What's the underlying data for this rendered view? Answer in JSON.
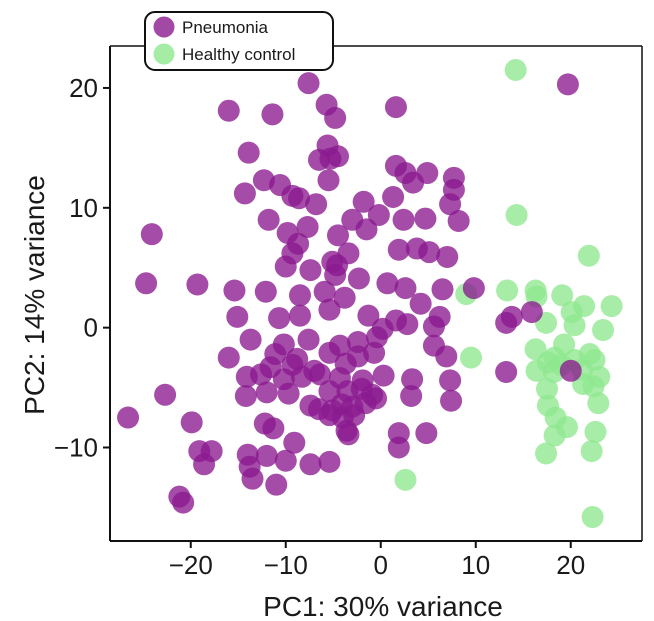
{
  "chart_data": {
    "type": "scatter",
    "title": "",
    "xlabel": "PC1: 30% variance",
    "ylabel": "PC2: 14% variance",
    "xlim": [
      -28.5,
      27.5
    ],
    "ylim": [
      -17.8,
      23.5
    ],
    "xticks": [
      -20,
      -10,
      0,
      10,
      20
    ],
    "yticks": [
      -10,
      0,
      10,
      20
    ],
    "xtick_labels": [
      "−20",
      "−10",
      "0",
      "10",
      "20"
    ],
    "ytick_labels": [
      "−10",
      "0",
      "10",
      "20"
    ],
    "grid": false,
    "legend_position": "top-left",
    "series": [
      {
        "name": "Pneumonia",
        "color": "#8b1a8f",
        "points": [
          [
            -7.6,
            20.4
          ],
          [
            1.6,
            18.4
          ],
          [
            -5.7,
            18.6
          ],
          [
            -4.8,
            17.5
          ],
          [
            -16.0,
            18.1
          ],
          [
            -11.4,
            17.8
          ],
          [
            19.7,
            20.3
          ],
          [
            -5.6,
            15.2
          ],
          [
            -5.3,
            14.1
          ],
          [
            -4.5,
            14.3
          ],
          [
            -13.9,
            14.6
          ],
          [
            -6.5,
            14.0
          ],
          [
            1.6,
            13.5
          ],
          [
            -5.5,
            12.3
          ],
          [
            -12.3,
            12.3
          ],
          [
            -10.6,
            11.9
          ],
          [
            -14.3,
            11.2
          ],
          [
            -9.3,
            11.0
          ],
          [
            -8.6,
            10.8
          ],
          [
            -6.8,
            10.3
          ],
          [
            -1.8,
            10.5
          ],
          [
            1.3,
            10.9
          ],
          [
            3.4,
            12.1
          ],
          [
            2.6,
            12.9
          ],
          [
            4.9,
            12.9
          ],
          [
            7.7,
            12.5
          ],
          [
            7.7,
            11.5
          ],
          [
            -11.8,
            9.0
          ],
          [
            -3.0,
            9.0
          ],
          [
            -0.2,
            9.4
          ],
          [
            2.4,
            9.0
          ],
          [
            7.3,
            10.3
          ],
          [
            4.7,
            9.1
          ],
          [
            8.2,
            8.9
          ],
          [
            -24.1,
            7.8
          ],
          [
            -9.8,
            7.9
          ],
          [
            -8.7,
            7.0
          ],
          [
            -7.7,
            8.4
          ],
          [
            -4.5,
            7.7
          ],
          [
            -1.5,
            8.2
          ],
          [
            -9.3,
            6.2
          ],
          [
            -3.4,
            6.2
          ],
          [
            1.9,
            6.5
          ],
          [
            3.8,
            6.6
          ],
          [
            5.1,
            6.3
          ],
          [
            7.0,
            5.9
          ],
          [
            -10.0,
            5.1
          ],
          [
            -7.4,
            4.8
          ],
          [
            -5.1,
            5.5
          ],
          [
            -4.6,
            5.2
          ],
          [
            -4.8,
            4.4
          ],
          [
            -2.3,
            4.1
          ],
          [
            -24.7,
            3.7
          ],
          [
            -19.3,
            3.6
          ],
          [
            -15.4,
            3.1
          ],
          [
            -12.1,
            3.0
          ],
          [
            -8.5,
            2.7
          ],
          [
            -5.9,
            3.0
          ],
          [
            -3.8,
            2.5
          ],
          [
            0.7,
            3.7
          ],
          [
            2.6,
            3.3
          ],
          [
            4.2,
            2.0
          ],
          [
            6.5,
            3.2
          ],
          [
            9.8,
            3.3
          ],
          [
            -15.1,
            0.9
          ],
          [
            -10.7,
            0.8
          ],
          [
            -8.5,
            1.0
          ],
          [
            -5.4,
            1.5
          ],
          [
            -1.3,
            1.0
          ],
          [
            0.2,
            -0.1
          ],
          [
            1.6,
            0.6
          ],
          [
            2.8,
            0.3
          ],
          [
            6.2,
            0.9
          ],
          [
            5.6,
            0.1
          ],
          [
            13.8,
            0.9
          ],
          [
            15.9,
            1.3
          ],
          [
            13.2,
            0.4
          ],
          [
            -13.7,
            -1.0
          ],
          [
            -10.2,
            -1.4
          ],
          [
            -7.6,
            -1.0
          ],
          [
            -4.3,
            -1.5
          ],
          [
            -2.4,
            -1.2
          ],
          [
            -0.4,
            -0.8
          ],
          [
            -16.0,
            -2.5
          ],
          [
            -11.1,
            -2.2
          ],
          [
            -8.8,
            -2.6
          ],
          [
            -5.4,
            -2.1
          ],
          [
            -2.4,
            -2.4
          ],
          [
            -0.7,
            -2.1
          ],
          [
            5.6,
            -1.5
          ],
          [
            -11.6,
            -3.3
          ],
          [
            -9.3,
            -3.1
          ],
          [
            -7.0,
            -3.6
          ],
          [
            -3.7,
            -3.0
          ],
          [
            6.9,
            -2.4
          ],
          [
            -14.1,
            -4.1
          ],
          [
            -12.6,
            -3.9
          ],
          [
            -10.2,
            -4.3
          ],
          [
            -8.3,
            -4.1
          ],
          [
            -6.4,
            -3.9
          ],
          [
            -4.3,
            -4.2
          ],
          [
            -1.9,
            -4.4
          ],
          [
            0.3,
            -4.0
          ],
          [
            3.3,
            -4.3
          ],
          [
            7.3,
            -4.4
          ],
          [
            13.2,
            -3.7
          ],
          [
            20.0,
            -3.6
          ],
          [
            -14.2,
            -5.7
          ],
          [
            -12.0,
            -5.4
          ],
          [
            -9.7,
            -5.5
          ],
          [
            -5.4,
            -5.3
          ],
          [
            -3.5,
            -5.3
          ],
          [
            -2.0,
            -5.1
          ],
          [
            -0.9,
            -5.6
          ],
          [
            -22.7,
            -5.6
          ],
          [
            -7.4,
            -6.5
          ],
          [
            -6.5,
            -6.8
          ],
          [
            -5.1,
            -6.9
          ],
          [
            -4.1,
            -6.4
          ],
          [
            -3.0,
            -6.6
          ],
          [
            -1.6,
            -6.3
          ],
          [
            -0.5,
            -5.9
          ],
          [
            3.2,
            -5.7
          ],
          [
            7.4,
            -6.1
          ],
          [
            -26.6,
            -7.5
          ],
          [
            -5.4,
            -7.3
          ],
          [
            -4.0,
            -7.5
          ],
          [
            -2.8,
            -7.3
          ],
          [
            -19.9,
            -7.9
          ],
          [
            -12.2,
            -8.0
          ],
          [
            -11.3,
            -8.4
          ],
          [
            -3.6,
            -8.6
          ],
          [
            -3.4,
            -8.9
          ],
          [
            1.9,
            -8.8
          ],
          [
            4.8,
            -8.8
          ],
          [
            -9.1,
            -9.6
          ],
          [
            -19.1,
            -10.3
          ],
          [
            -17.8,
            -10.3
          ],
          [
            -14.0,
            -10.6
          ],
          [
            -12.0,
            -10.7
          ],
          [
            -18.6,
            -11.4
          ],
          [
            -13.8,
            -11.6
          ],
          [
            -10.0,
            -11.1
          ],
          [
            -7.4,
            -11.4
          ],
          [
            -5.4,
            -11.2
          ],
          [
            -13.5,
            -12.6
          ],
          [
            -11.0,
            -13.1
          ],
          [
            1.9,
            -10.0
          ],
          [
            -21.2,
            -14.1
          ],
          [
            -20.8,
            -14.6
          ]
        ]
      },
      {
        "name": "Healthy control",
        "color": "#8ee88e",
        "points": [
          [
            14.2,
            21.5
          ],
          [
            14.3,
            9.4
          ],
          [
            21.9,
            6.0
          ],
          [
            9.0,
            2.8
          ],
          [
            13.3,
            3.1
          ],
          [
            16.4,
            2.6
          ],
          [
            16.3,
            3.1
          ],
          [
            19.1,
            2.7
          ],
          [
            21.4,
            1.8
          ],
          [
            24.3,
            1.8
          ],
          [
            20.1,
            1.3
          ],
          [
            17.4,
            0.4
          ],
          [
            20.4,
            0.2
          ],
          [
            23.4,
            -0.2
          ],
          [
            9.5,
            -2.5
          ],
          [
            16.3,
            -1.8
          ],
          [
            19.3,
            -1.4
          ],
          [
            18.3,
            -2.5
          ],
          [
            22.0,
            -2.2
          ],
          [
            17.6,
            -2.9
          ],
          [
            19.0,
            -3.1
          ],
          [
            20.4,
            -2.7
          ],
          [
            22.5,
            -2.7
          ],
          [
            16.4,
            -3.6
          ],
          [
            18.2,
            -3.7
          ],
          [
            21.2,
            -3.5
          ],
          [
            23.0,
            -4.1
          ],
          [
            17.5,
            -5.1
          ],
          [
            21.3,
            -4.7
          ],
          [
            22.4,
            -4.9
          ],
          [
            17.6,
            -6.5
          ],
          [
            22.9,
            -6.3
          ],
          [
            18.4,
            -7.5
          ],
          [
            19.6,
            -8.3
          ],
          [
            18.3,
            -9.0
          ],
          [
            22.6,
            -8.7
          ],
          [
            17.4,
            -10.5
          ],
          [
            22.2,
            -10.3
          ],
          [
            2.6,
            -12.7
          ],
          [
            22.3,
            -15.8
          ]
        ]
      }
    ]
  }
}
